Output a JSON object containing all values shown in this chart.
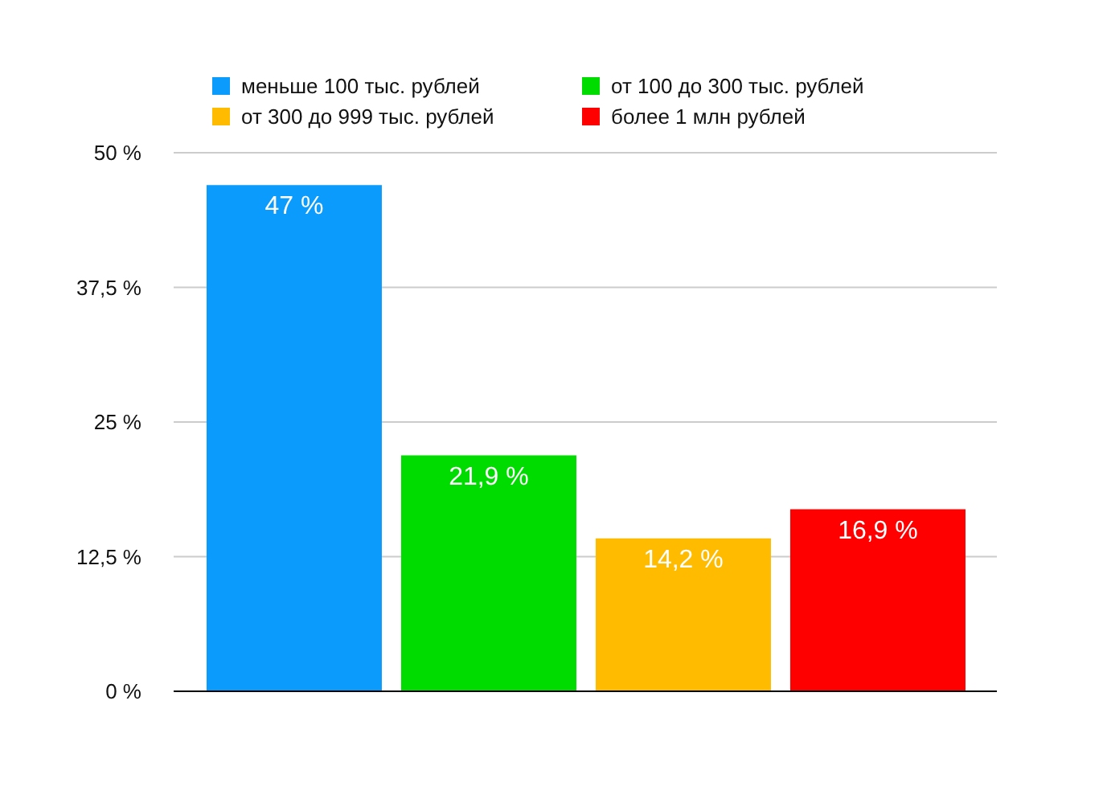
{
  "chart_data": {
    "type": "bar",
    "categories": [
      null
    ],
    "series": [
      {
        "name": "меньше 100 тыс. рублей",
        "color": "#0a9bfc",
        "values": [
          47
        ],
        "value_labels": [
          "47 %"
        ]
      },
      {
        "name": "от 100 до 300 тыс. рублей",
        "color": "#00dc00",
        "values": [
          21.9
        ],
        "value_labels": [
          "21,9 %"
        ]
      },
      {
        "name": "от 300 до 999 тыс. рублей",
        "color": "#ffbb00",
        "values": [
          14.2
        ],
        "value_labels": [
          "14,2 %"
        ]
      },
      {
        "name": "более 1 млн рублей",
        "color": "#ff0000",
        "values": [
          16.9
        ],
        "value_labels": [
          "16,9 %"
        ]
      }
    ],
    "ylim": [
      0,
      50
    ],
    "yticks": [
      {
        "value": 0,
        "label": "0 %"
      },
      {
        "value": 12.5,
        "label": "12,5 %"
      },
      {
        "value": 25,
        "label": "25 %"
      },
      {
        "value": 37.5,
        "label": "37,5 %"
      },
      {
        "value": 50,
        "label": "50 %"
      }
    ],
    "grid": "y",
    "legend": "top"
  }
}
